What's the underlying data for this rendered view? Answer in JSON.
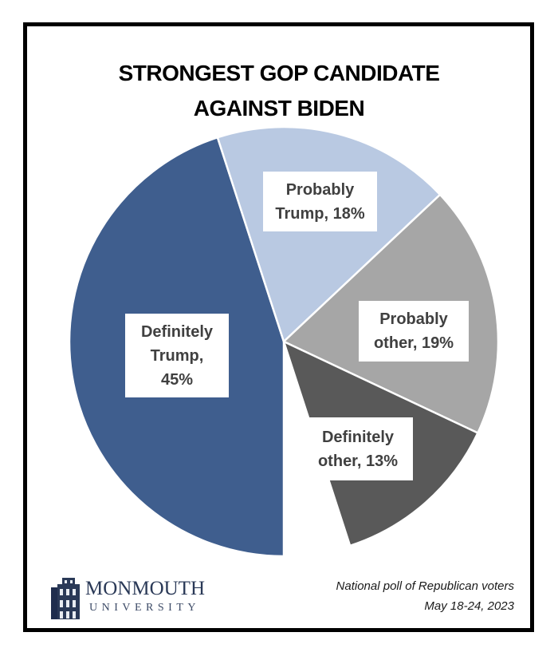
{
  "chart_data": {
    "type": "pie",
    "title": "STRONGEST GOP CANDIDATE AGAINST BIDEN",
    "title_lines": [
      "STRONGEST GOP CANDIDATE",
      "AGAINST BIDEN"
    ],
    "start_angle_deg_clockwise_from_top": 342,
    "slices": [
      {
        "label": "Definitely Trump",
        "value": 45,
        "color": "#3f5e8e",
        "data_label_lines": [
          "Definitely",
          "Trump,",
          "45%"
        ]
      },
      {
        "label": "Probably Trump",
        "value": 18,
        "color": "#b9c9e2",
        "data_label_lines": [
          "Probably",
          "Trump, 18%"
        ]
      },
      {
        "label": "Probably other",
        "value": 19,
        "color": "#a6a6a6",
        "data_label_lines": [
          "Probably",
          "other, 19%"
        ]
      },
      {
        "label": "Definitely other",
        "value": 13,
        "color": "#595959",
        "data_label_lines": [
          "Definitely",
          "other, 13%"
        ]
      }
    ],
    "unshown_remainder_percent": 5,
    "legend": "none"
  },
  "footer": {
    "logo": {
      "name": "MONMOUTH",
      "sub": "UNIVERSITY",
      "icon": "building-icon",
      "color": "#2a3957"
    },
    "note_lines": [
      "National poll of Republican voters",
      "May 18-24, 2023"
    ]
  }
}
